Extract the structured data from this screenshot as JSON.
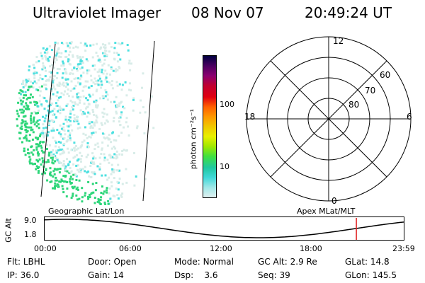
{
  "header": {
    "instrument": "Ultraviolet Imager",
    "date": "08 Nov 07",
    "time": "20:49:24 UT"
  },
  "colorbar": {
    "unit_label": "photon cm⁻²s⁻¹",
    "ticks": [
      "100",
      "10"
    ],
    "colors": [
      "#000040",
      "#4a0060",
      "#8a0070",
      "#c00030",
      "#e00010",
      "#ff6000",
      "#ff9800",
      "#f0c800",
      "#e8f000",
      "#a0e800",
      "#40e040",
      "#20c8a0",
      "#40d8d8",
      "#a0e8e8",
      "#e0f0f0"
    ]
  },
  "map": {
    "footer_label": "Geographic Lat/Lon",
    "colors": {
      "green": "#2ed67a",
      "cyan": "#4ee0e0",
      "pale": "#d8ece8"
    }
  },
  "polar": {
    "footer_label": "Apex MLat/MLT",
    "mlt_labels": {
      "top": "12",
      "bottom": "0",
      "left": "18",
      "right": "6"
    },
    "mlat_labels": [
      "60",
      "70",
      "80"
    ]
  },
  "timeline": {
    "axis_title": "GC Alt",
    "y_labels": [
      "9.0",
      "1.8"
    ],
    "x_labels": [
      "00:00",
      "06:00",
      "12:00",
      "18:00",
      "23:59"
    ],
    "marker_color": "#e02020"
  },
  "status": {
    "row1": [
      {
        "key": "Flt:",
        "value": "LBHL"
      },
      {
        "key": "Door:",
        "value": "Open"
      },
      {
        "key": "Mode:",
        "value": "Normal"
      },
      {
        "key": "GC Alt:",
        "value": "2.9 Re"
      },
      {
        "key": "GLat:",
        "value": "14.8"
      }
    ],
    "row2": [
      {
        "key": "IP:",
        "value": "36.0"
      },
      {
        "key": "Gain:",
        "value": "14"
      },
      {
        "key": "Dsp:",
        "value": "3.6"
      },
      {
        "key": "Seq:",
        "value": "39"
      },
      {
        "key": "GLon:",
        "value": "145.5"
      }
    ]
  }
}
